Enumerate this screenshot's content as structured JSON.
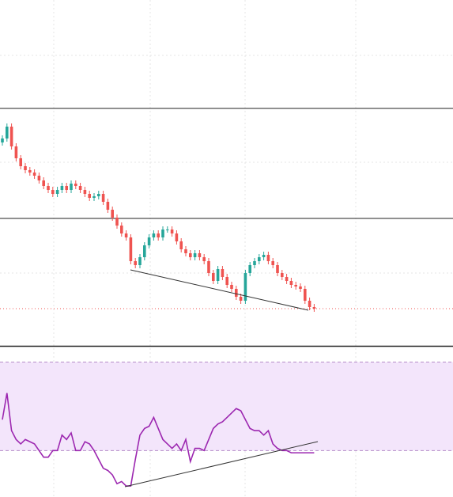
{
  "chart_data": [
    {
      "type": "candlestick",
      "open": [
        258,
        263,
        278,
        253,
        238,
        228,
        223,
        220,
        216,
        210,
        203,
        198,
        193,
        198,
        203,
        198,
        206,
        203,
        198,
        193,
        188,
        190,
        193,
        183,
        173,
        163,
        153,
        143,
        138,
        108,
        103,
        113,
        128,
        138,
        143,
        138,
        148,
        148,
        143,
        133,
        123,
        118,
        113,
        118,
        113,
        108,
        93,
        83,
        98,
        88,
        78,
        73,
        63,
        58,
        93,
        103,
        108,
        113,
        116,
        108,
        103,
        93,
        88,
        83,
        78,
        76,
        73,
        58,
        50
      ],
      "high": [
        267,
        282,
        282,
        257,
        242,
        232,
        227,
        224,
        220,
        214,
        207,
        202,
        202,
        207,
        207,
        210,
        210,
        207,
        202,
        197,
        194,
        197,
        197,
        187,
        177,
        167,
        157,
        147,
        142,
        112,
        117,
        132,
        142,
        147,
        147,
        152,
        152,
        152,
        147,
        137,
        127,
        122,
        122,
        122,
        117,
        112,
        97,
        102,
        102,
        92,
        82,
        77,
        67,
        97,
        107,
        112,
        117,
        120,
        120,
        112,
        107,
        97,
        92,
        87,
        82,
        80,
        77,
        62,
        54
      ],
      "low": [
        254,
        259,
        249,
        234,
        224,
        219,
        216,
        212,
        206,
        199,
        194,
        189,
        189,
        194,
        194,
        194,
        199,
        194,
        189,
        184,
        184,
        186,
        179,
        169,
        159,
        149,
        139,
        134,
        104,
        99,
        99,
        109,
        124,
        134,
        134,
        134,
        144,
        139,
        129,
        119,
        114,
        109,
        109,
        109,
        104,
        89,
        79,
        79,
        84,
        74,
        69,
        59,
        54,
        54,
        89,
        99,
        104,
        109,
        104,
        99,
        89,
        84,
        79,
        74,
        72,
        69,
        54,
        46,
        44
      ],
      "close": [
        263,
        278,
        253,
        238,
        228,
        223,
        220,
        216,
        210,
        203,
        198,
        193,
        198,
        203,
        198,
        206,
        203,
        198,
        193,
        188,
        190,
        193,
        183,
        173,
        163,
        153,
        143,
        138,
        108,
        103,
        113,
        128,
        138,
        143,
        138,
        148,
        148,
        143,
        133,
        123,
        118,
        113,
        118,
        113,
        108,
        93,
        83,
        98,
        88,
        78,
        73,
        63,
        58,
        93,
        103,
        108,
        113,
        116,
        108,
        103,
        93,
        88,
        83,
        78,
        76,
        73,
        58,
        50,
        48
      ],
      "ylim": [
        0,
        438
      ],
      "up_color": "#26a69a",
      "down_color": "#ef5350"
    },
    {
      "type": "line",
      "values": [
        44,
        56,
        39,
        35,
        33,
        35,
        34,
        33,
        30,
        27,
        27,
        30,
        30,
        37,
        35,
        38,
        30,
        30,
        34,
        33,
        30,
        26,
        22,
        21,
        19,
        15,
        16,
        14,
        14,
        26,
        37,
        40,
        41,
        45,
        40,
        35,
        33,
        31,
        33,
        30,
        35,
        25,
        31,
        31,
        30,
        35,
        40,
        42,
        43,
        45,
        47,
        49,
        48,
        44,
        40,
        39,
        39,
        37,
        39,
        33,
        31,
        30,
        30,
        29,
        29,
        29,
        29,
        29,
        29
      ],
      "ylim": [
        9,
        77
      ],
      "bands": [
        30,
        70
      ],
      "color": "#9c27b0"
    }
  ]
}
